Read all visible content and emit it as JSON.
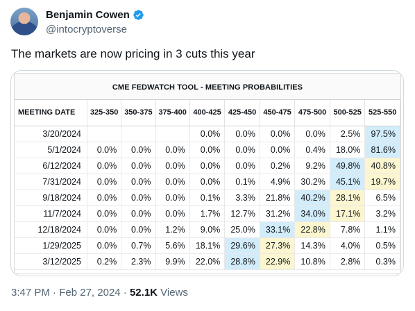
{
  "author": {
    "name": "Benjamin Cowen",
    "handle": "@intocryptoverse",
    "verified_color": "#1d9bf0"
  },
  "tweet": {
    "text": "The markets are now pricing in 3 cuts this year"
  },
  "table": {
    "title": "CME FEDWATCH TOOL - MEETING PROBABILITIES",
    "headers": [
      "MEETING DATE",
      "325-350",
      "350-375",
      "375-400",
      "400-425",
      "425-450",
      "450-475",
      "475-500",
      "500-525",
      "525-550"
    ],
    "rows": [
      {
        "date": "3/20/2024",
        "cells": [
          "",
          "",
          "",
          "0.0%",
          "0.0%",
          "0.0%",
          "0.0%",
          "2.5%",
          "97.5%"
        ],
        "blue": 8,
        "yellow": -1
      },
      {
        "date": "5/1/2024",
        "cells": [
          "0.0%",
          "0.0%",
          "0.0%",
          "0.0%",
          "0.0%",
          "0.0%",
          "0.4%",
          "18.0%",
          "81.6%"
        ],
        "blue": 8,
        "yellow": -1
      },
      {
        "date": "6/12/2024",
        "cells": [
          "0.0%",
          "0.0%",
          "0.0%",
          "0.0%",
          "0.0%",
          "0.2%",
          "9.2%",
          "49.8%",
          "40.8%"
        ],
        "blue": 7,
        "yellow": 8
      },
      {
        "date": "7/31/2024",
        "cells": [
          "0.0%",
          "0.0%",
          "0.0%",
          "0.0%",
          "0.1%",
          "4.9%",
          "30.2%",
          "45.1%",
          "19.7%"
        ],
        "blue": 7,
        "yellow": 8
      },
      {
        "date": "9/18/2024",
        "cells": [
          "0.0%",
          "0.0%",
          "0.0%",
          "0.1%",
          "3.3%",
          "21.8%",
          "40.2%",
          "28.1%",
          "6.5%"
        ],
        "blue": 6,
        "yellow": 7
      },
      {
        "date": "11/7/2024",
        "cells": [
          "0.0%",
          "0.0%",
          "0.0%",
          "1.7%",
          "12.7%",
          "31.2%",
          "34.0%",
          "17.1%",
          "3.2%"
        ],
        "blue": 6,
        "yellow": 7
      },
      {
        "date": "12/18/2024",
        "cells": [
          "0.0%",
          "0.0%",
          "1.2%",
          "9.0%",
          "25.0%",
          "33.1%",
          "22.8%",
          "7.8%",
          "1.1%"
        ],
        "blue": 5,
        "yellow": 6
      },
      {
        "date": "1/29/2025",
        "cells": [
          "0.0%",
          "0.7%",
          "5.6%",
          "18.1%",
          "29.6%",
          "27.3%",
          "14.3%",
          "4.0%",
          "0.5%"
        ],
        "blue": 4,
        "yellow": 5
      },
      {
        "date": "3/12/2025",
        "cells": [
          "0.2%",
          "2.3%",
          "9.9%",
          "22.0%",
          "28.8%",
          "22.9%",
          "10.8%",
          "2.8%",
          "0.3%"
        ],
        "blue": 4,
        "yellow": 5
      }
    ],
    "highlight_blue": "#d2ecfa",
    "highlight_yellow": "#fbf6cf"
  },
  "meta": {
    "time": "3:47 PM",
    "date": "Feb 27, 2024",
    "separator": "·",
    "views_count": "52.1K",
    "views_label": "Views"
  }
}
